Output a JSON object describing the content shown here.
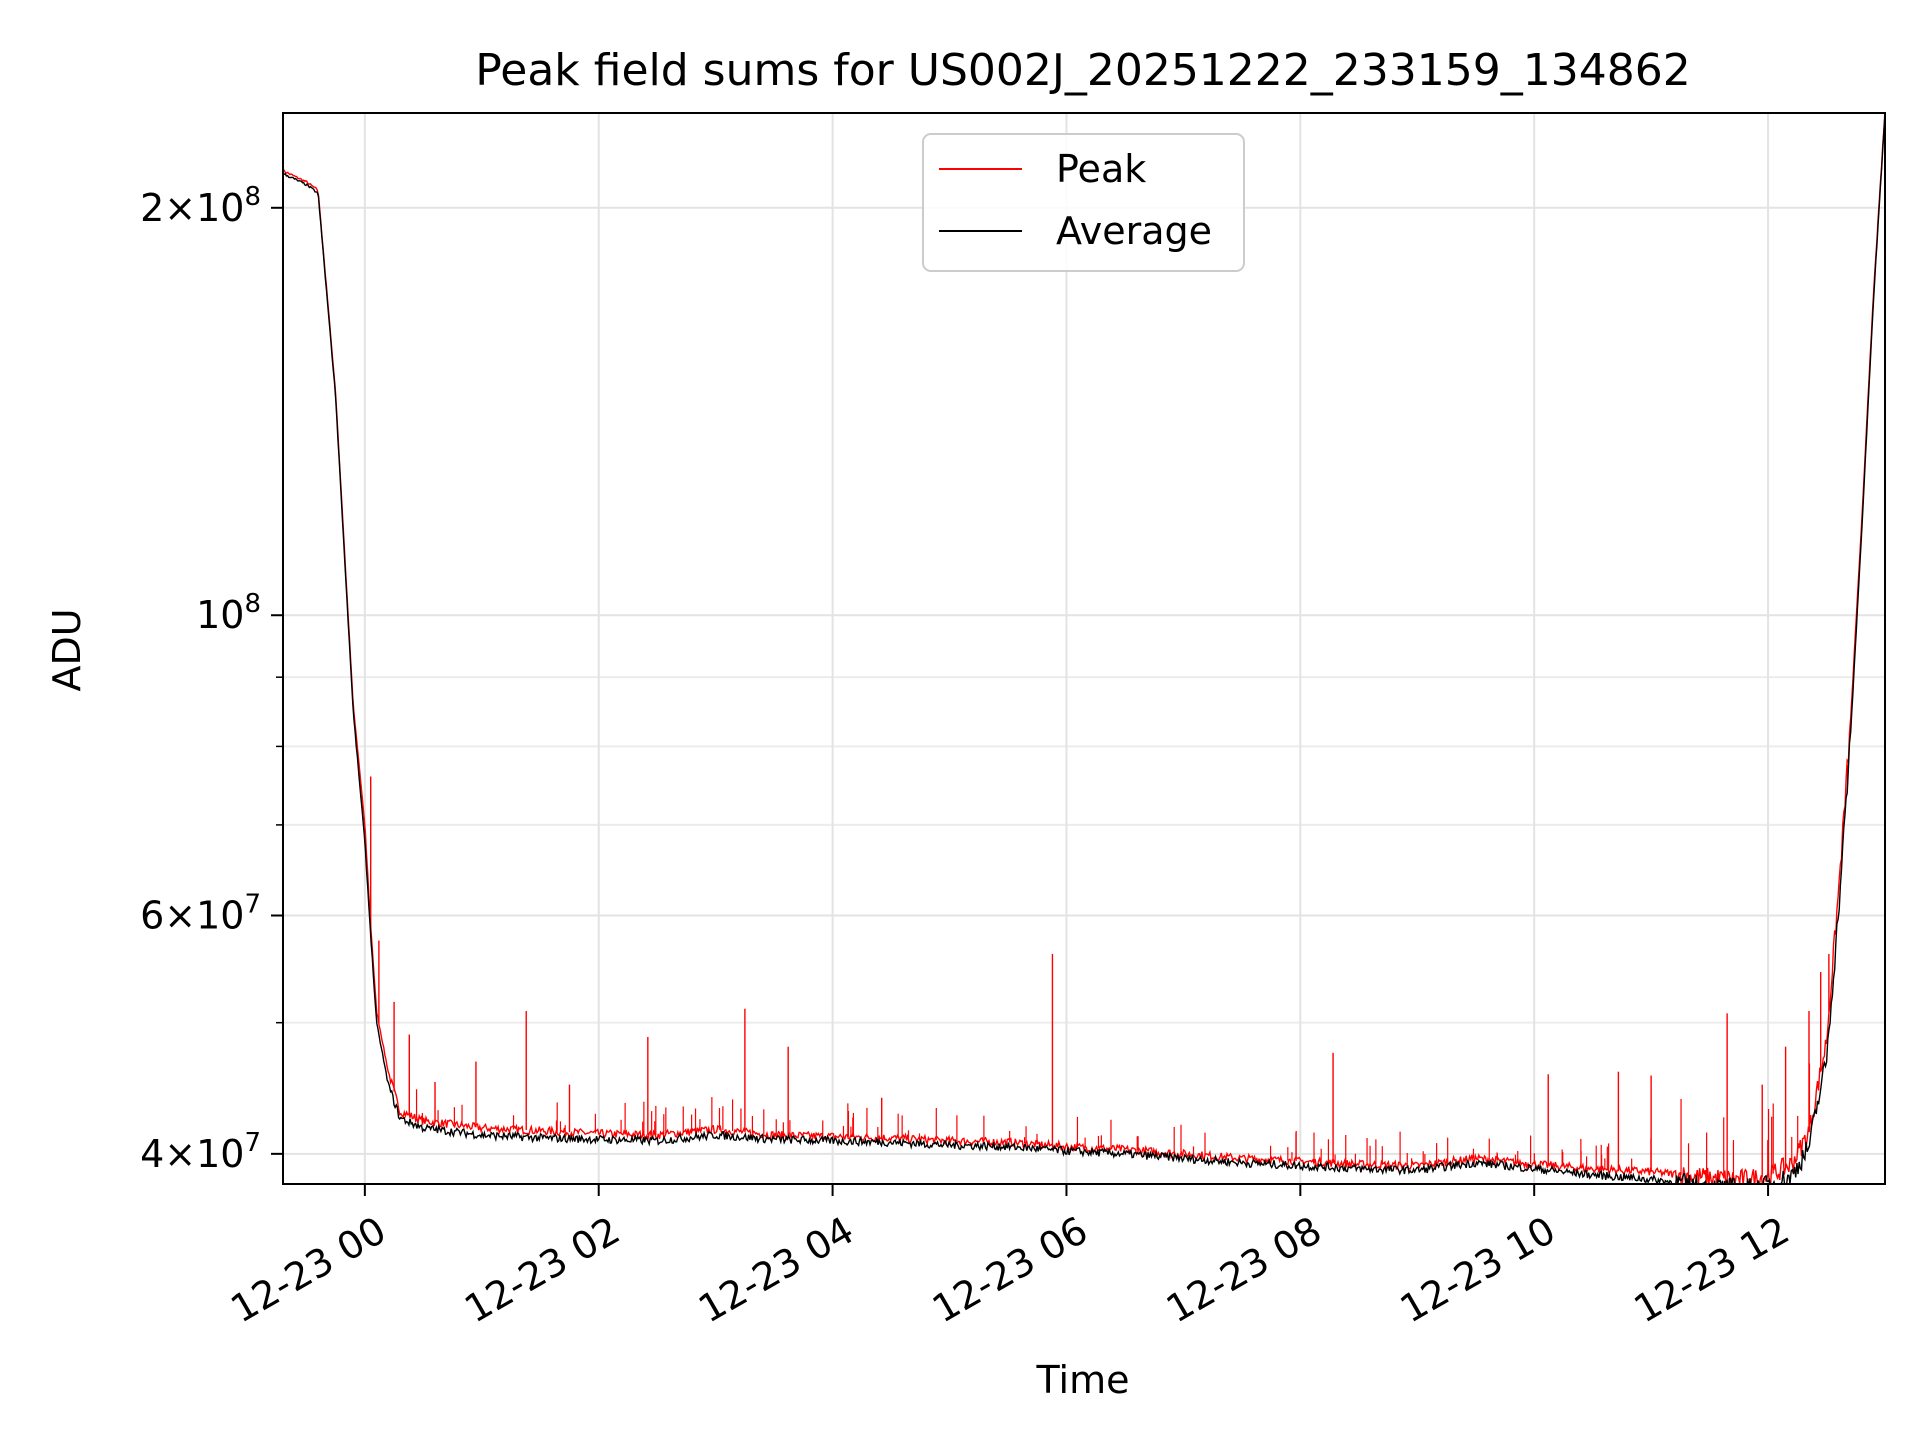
{
  "chart_data": {
    "type": "line",
    "title": "Peak field sums for US002J_20251222_233159_134862",
    "xlabel": "Time",
    "ylabel": "ADU",
    "yscale": "log",
    "ylim": [
      38000000,
      235000000
    ],
    "xlim_hours": [
      -0.7,
      13.0
    ],
    "grid": true,
    "legend": {
      "position": "top-center",
      "entries": [
        "Peak",
        "Average"
      ]
    },
    "x_ticks": [
      {
        "hour": 0,
        "label": "12-23 00"
      },
      {
        "hour": 2,
        "label": "12-23 02"
      },
      {
        "hour": 4,
        "label": "12-23 04"
      },
      {
        "hour": 6,
        "label": "12-23 06"
      },
      {
        "hour": 8,
        "label": "12-23 08"
      },
      {
        "hour": 10,
        "label": "12-23 10"
      },
      {
        "hour": 12,
        "label": "12-23 12"
      }
    ],
    "y_ticks": [
      {
        "value": 40000000,
        "base": "4×10",
        "exp": "7"
      },
      {
        "value": 60000000,
        "base": "6×10",
        "exp": "7"
      },
      {
        "value": 100000000,
        "base": "10",
        "exp": "8"
      },
      {
        "value": 200000000,
        "base": "2×10",
        "exp": "8"
      }
    ],
    "y_minor_ticks": [
      50000000,
      70000000,
      80000000,
      90000000
    ],
    "series": [
      {
        "name": "Average",
        "color": "#000000",
        "x_hours": [
          -0.7,
          -0.5,
          -0.4,
          -0.25,
          -0.1,
          0.0,
          0.05,
          0.1,
          0.2,
          0.3,
          0.5,
          1.0,
          1.5,
          2.0,
          2.5,
          3.0,
          3.5,
          4.0,
          4.5,
          5.0,
          5.5,
          6.0,
          6.5,
          7.0,
          7.5,
          8.0,
          8.5,
          9.0,
          9.5,
          10.0,
          10.5,
          11.0,
          11.5,
          11.8,
          12.0,
          12.2,
          12.35,
          12.5,
          12.6,
          12.7,
          12.8,
          12.9,
          13.0
        ],
        "values": [
          212000000,
          208000000,
          205000000,
          145000000,
          85000000,
          68000000,
          58000000,
          50000000,
          45000000,
          42500000,
          41800000,
          41300000,
          41100000,
          41000000,
          40900000,
          41300000,
          41000000,
          40900000,
          40800000,
          40600000,
          40500000,
          40200000,
          40000000,
          39700000,
          39400000,
          39200000,
          39000000,
          38900000,
          39400000,
          39000000,
          38600000,
          38300000,
          37800000,
          37700000,
          37900000,
          38500000,
          40500000,
          47000000,
          60000000,
          80000000,
          115000000,
          170000000,
          235000000
        ]
      },
      {
        "name": "Peak",
        "color": "#ff0000",
        "x_hours": [
          -0.7,
          -0.5,
          -0.4,
          -0.25,
          -0.1,
          0.0,
          0.05,
          0.1,
          0.2,
          0.3,
          0.5,
          1.0,
          1.5,
          2.0,
          2.5,
          3.0,
          3.5,
          4.0,
          4.5,
          5.0,
          5.5,
          6.0,
          6.5,
          7.0,
          7.5,
          8.0,
          8.5,
          9.0,
          9.5,
          10.0,
          10.5,
          11.0,
          11.5,
          11.8,
          12.0,
          12.2,
          12.35,
          12.5,
          12.6,
          12.7,
          12.8,
          12.9,
          13.0
        ],
        "values": [
          213000000,
          209000000,
          206000000,
          146000000,
          86000000,
          70000000,
          59000000,
          51000000,
          46000000,
          43000000,
          42300000,
          41800000,
          41600000,
          41400000,
          41300000,
          41700000,
          41300000,
          41200000,
          41100000,
          40900000,
          40800000,
          40500000,
          40300000,
          40000000,
          39700000,
          39500000,
          39300000,
          39200000,
          39700000,
          39300000,
          39000000,
          38800000,
          38400000,
          38300000,
          38500000,
          39300000,
          41500000,
          48500000,
          62000000,
          82000000,
          117000000,
          172000000,
          236000000
        ],
        "spikes": [
          [
            0.05,
            76000000
          ],
          [
            0.12,
            57500000
          ],
          [
            0.25,
            51800000
          ],
          [
            0.38,
            49000000
          ],
          [
            0.6,
            45200000
          ],
          [
            0.95,
            46800000
          ],
          [
            1.38,
            51000000
          ],
          [
            1.75,
            45000000
          ],
          [
            2.42,
            48800000
          ],
          [
            3.25,
            51200000
          ],
          [
            3.62,
            48000000
          ],
          [
            4.42,
            44000000
          ],
          [
            5.88,
            56200000
          ],
          [
            8.28,
            47500000
          ],
          [
            10.12,
            45800000
          ],
          [
            10.72,
            46000000
          ],
          [
            11.0,
            45700000
          ],
          [
            11.65,
            50800000
          ],
          [
            11.95,
            45000000
          ],
          [
            12.15,
            48000000
          ],
          [
            12.35,
            51000000
          ],
          [
            12.45,
            54500000
          ],
          [
            12.52,
            56200000
          ],
          [
            12.68,
            75000000
          ]
        ]
      }
    ]
  }
}
